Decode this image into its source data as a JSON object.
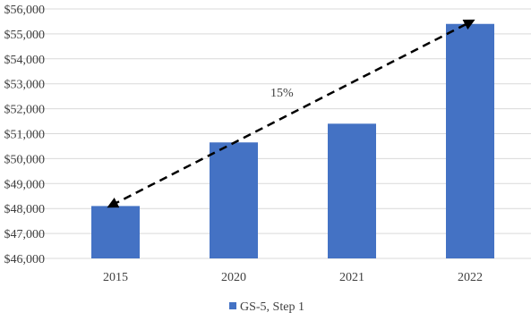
{
  "chart_data": {
    "type": "bar",
    "title": "",
    "xlabel": "",
    "ylabel": "",
    "categories": [
      "2015",
      "2020",
      "2021",
      "2022"
    ],
    "series": [
      {
        "name": "GS-5, Step 1",
        "values": [
          48100,
          50650,
          51400,
          55400
        ],
        "color": "#4472C4"
      }
    ],
    "ylim": [
      46000,
      56000
    ],
    "ytick_labels": [
      "$46,000",
      "$47,000",
      "$48,000",
      "$49,000",
      "$50,000",
      "$51,000",
      "$52,000",
      "$53,000",
      "$54,000",
      "$55,000",
      "$56,000"
    ],
    "grid": true,
    "legend": "bottom",
    "annotation": {
      "text": "15%",
      "arrow_from": {
        "category": "2015",
        "value": 48100
      },
      "arrow_to": {
        "category": "2022",
        "value": 55400
      },
      "style": "dashed double-headed arrow"
    }
  }
}
